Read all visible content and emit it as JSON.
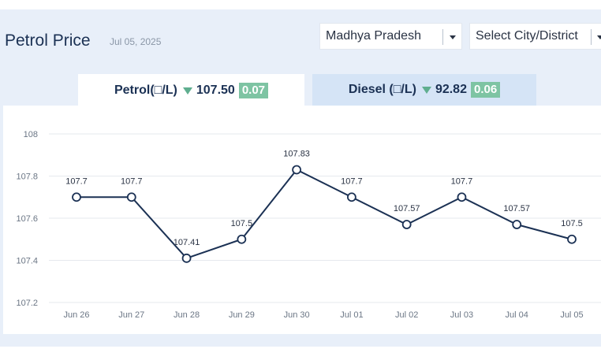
{
  "header": {
    "title": "Petrol Price",
    "date": "Jul 05, 2025"
  },
  "filters": {
    "state": "Madhya Pradesh",
    "city_placeholder": "Select City/District"
  },
  "tabs": {
    "petrol": {
      "label": "Petrol(□/L)",
      "price": "107.50",
      "change": "0.07"
    },
    "diesel": {
      "label": "Diesel (□/L)",
      "price": "92.82",
      "change": "0.06"
    }
  },
  "colors": {
    "line": "#1b3154",
    "accent_green": "#7ec4a3",
    "arrow_green": "#5fae8f",
    "grid": "#e6e9ee"
  },
  "icons": {
    "dropdown": "chevron-down-icon",
    "trend": "down-arrow-icon"
  },
  "chart_data": {
    "type": "line",
    "title": "",
    "xlabel": "",
    "ylabel": "",
    "categories": [
      "Jun 26",
      "Jun 27",
      "Jun 28",
      "Jun 29",
      "Jun 30",
      "Jul 01",
      "Jul 02",
      "Jul 03",
      "Jul 04",
      "Jul 05"
    ],
    "values": [
      107.7,
      107.7,
      107.41,
      107.5,
      107.83,
      107.7,
      107.57,
      107.7,
      107.57,
      107.5
    ],
    "data_labels": [
      "107.7",
      "107.7",
      "107.41",
      "107.5",
      "107.83",
      "107.7",
      "107.57",
      "107.7",
      "107.57",
      "107.5"
    ],
    "ylim": [
      107.2,
      108
    ],
    "y_ticks": [
      "107.2",
      "107.4",
      "107.6",
      "107.8",
      "108"
    ],
    "y_tick_values": [
      107.2,
      107.4,
      107.6,
      107.8,
      108
    ],
    "grid": true,
    "legend": "none"
  }
}
